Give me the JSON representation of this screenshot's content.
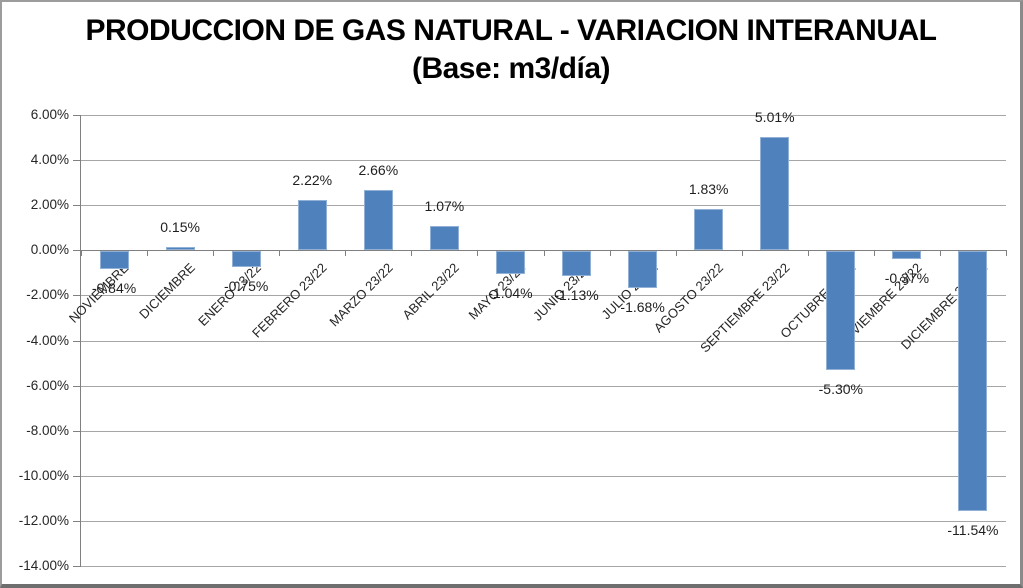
{
  "title": {
    "line1": "PRODUCCION DE GAS NATURAL - VARIACION INTERANUAL",
    "line2": "(Base: m3/día)"
  },
  "chart_data": {
    "type": "bar",
    "title": "PRODUCCION DE GAS NATURAL - VARIACION INTERANUAL (Base: m3/día)",
    "xlabel": "",
    "ylabel": "",
    "categories": [
      "NOVIEMBRE",
      "DICIEMBRE",
      "ENERO 23/22",
      "FEBRERO 23/22",
      "MARZO 23/22",
      "ABRIL 23/22",
      "MAYO 23/22",
      "JUNIO 23/22",
      "JULIO 23/22",
      "AGOSTO 23/22",
      "SEPTIEMBRE 23/22",
      "OCTUBRE 23/22",
      "NOVIEMBRE 23/22",
      "DICIEMBRE 23/222"
    ],
    "values": [
      -0.84,
      0.15,
      -0.75,
      2.22,
      2.66,
      1.07,
      -1.04,
      -1.13,
      -1.68,
      1.83,
      5.01,
      -5.3,
      -0.37,
      -11.54
    ],
    "data_labels": [
      "-0.84%",
      "0.15%",
      "-0.75%",
      "2.22%",
      "2.66%",
      "1.07%",
      "-1.04%",
      "-1.13%",
      "-1.68%",
      "1.83%",
      "5.01%",
      "-5.30%",
      "-0.37%",
      "-11.54%"
    ],
    "ylim": [
      -14,
      6
    ],
    "ytick_step": 2,
    "ytick_labels": [
      "6.00%",
      "4.00%",
      "2.00%",
      "0.00%",
      "-2.00%",
      "-4.00%",
      "-6.00%",
      "-8.00%",
      "-10.00%",
      "-12.00%",
      "-14.00%"
    ],
    "grid": true,
    "legend": false,
    "colors": {
      "bar_fill": "#4F81BD",
      "bar_border": "#92B1D6",
      "gridline": "#A6A6A6",
      "axis": "#808080",
      "label_text": "#262626"
    }
  }
}
